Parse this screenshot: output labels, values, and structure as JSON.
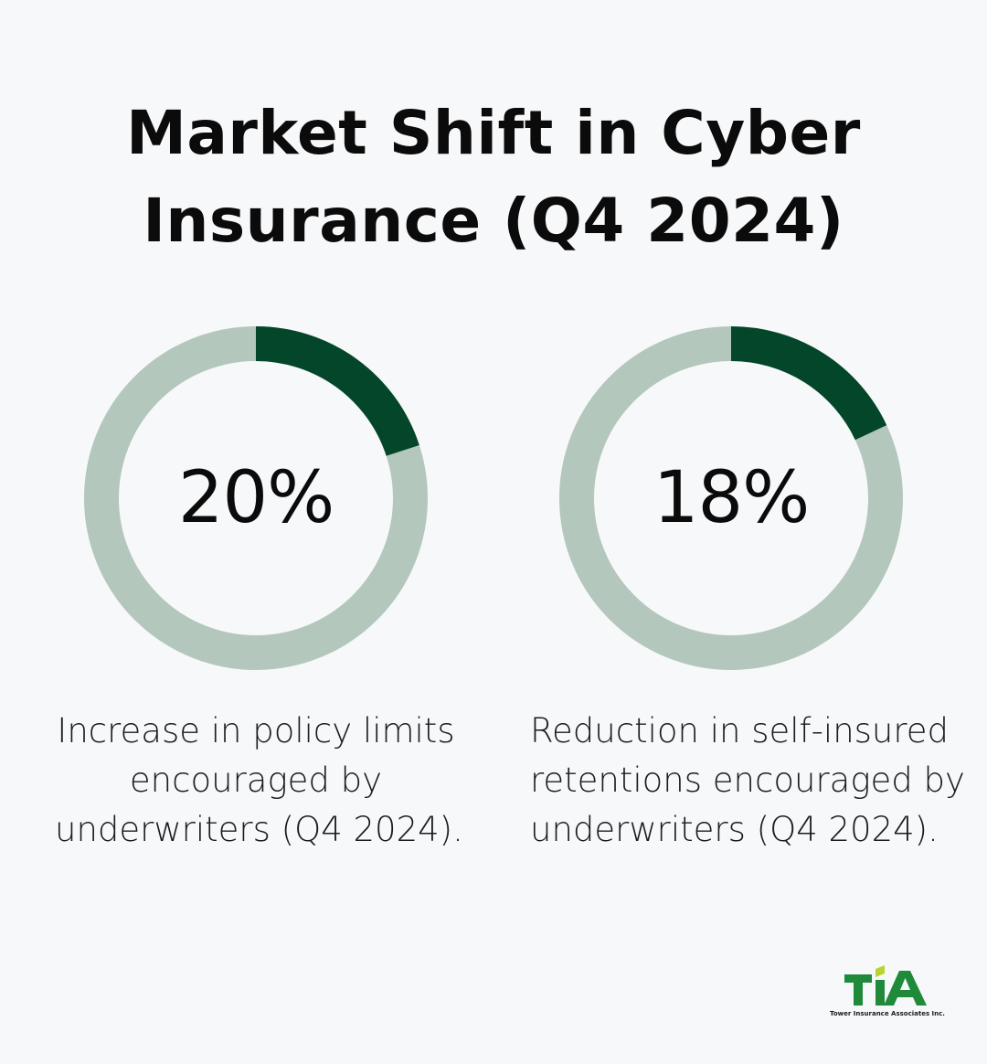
{
  "title_lines": [
    "Market Shift in Cyber",
    "Insurance (Q4 2024)"
  ],
  "colors": {
    "accent": "#03462a",
    "track": "#b3c7bc",
    "background": "#f7f8fa",
    "logo_green": "#1e8a3a",
    "logo_lime": "#b8d432"
  },
  "chart_data": [
    {
      "type": "pie",
      "value": 20,
      "value_label": "20%",
      "description_lines": [
        "Increase in policy limits",
        "encouraged by",
        "underwriters (Q4 2024)."
      ]
    },
    {
      "type": "pie",
      "value": 18,
      "value_label": "18%",
      "description_lines": [
        "Reduction in self-insured",
        "retentions encouraged by",
        "underwriters (Q4 2024)."
      ]
    }
  ],
  "logo": {
    "mark": "TIA",
    "caption": "Tower Insurance Associates Inc."
  }
}
